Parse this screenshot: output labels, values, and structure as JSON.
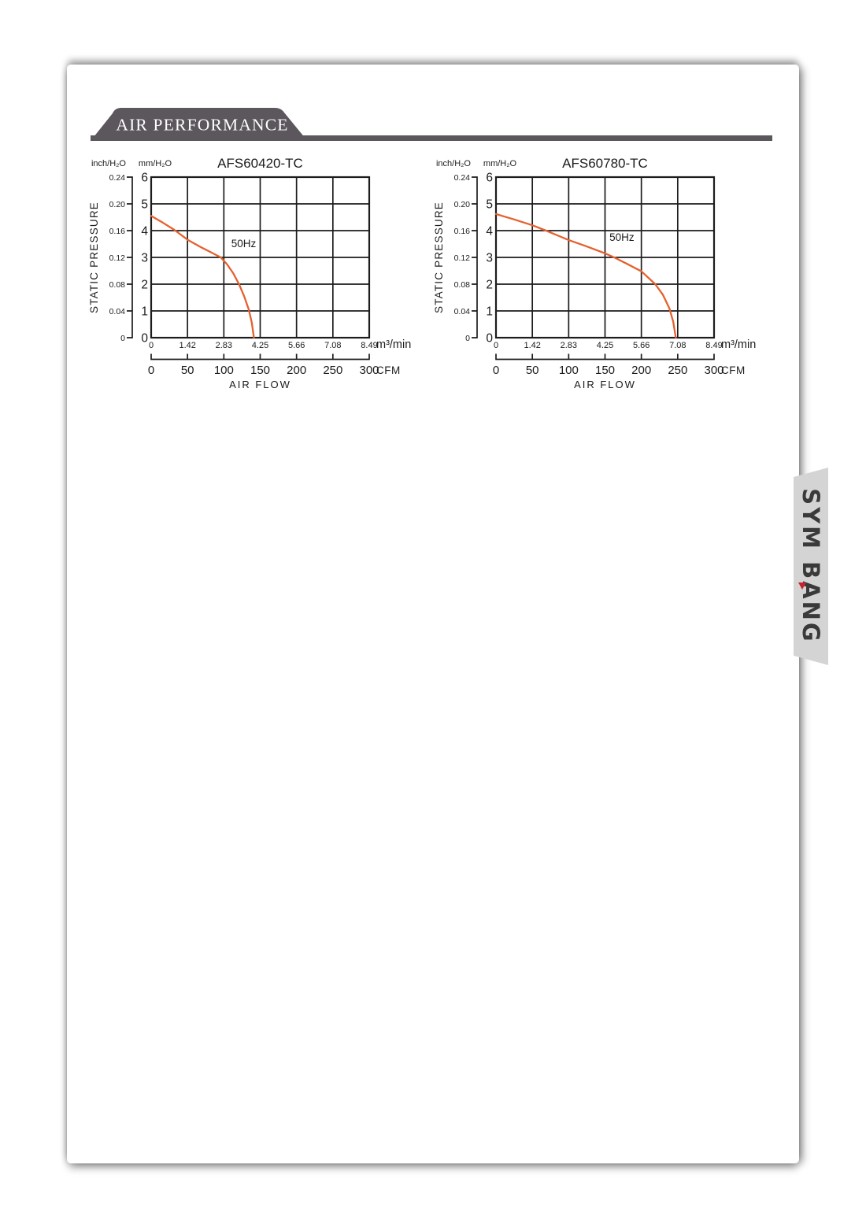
{
  "page": {
    "section_title": "AIR PERFORMANCE",
    "banner_color": "#5b575c",
    "brand": {
      "label": "SYM BANG",
      "tab_color": "#d5d4d4",
      "text_color": "#3a3a3a",
      "accent_color": "#c4232b"
    }
  },
  "colors": {
    "curve": "#e4612f",
    "grid": "#1c1c1c"
  },
  "chart_data": [
    {
      "type": "line",
      "title": "AFS60420-TC",
      "series_label": "50Hz",
      "y_axis_title": "STATIC PRESSURE",
      "x_axis_title": "AIR FLOW",
      "y_unit_left": "inch/H₂O",
      "y_unit_right": "mm/H₂O",
      "x_unit_top": "m³/min",
      "x_unit_bottom": "CFM",
      "inch_ticks": [
        "0.24",
        "0.20",
        "0.16",
        "0.12",
        "0.08",
        "0.04",
        "0"
      ],
      "mm_ticks": [
        "6",
        "5",
        "4",
        "3",
        "2",
        "1",
        "0"
      ],
      "x_ticks_m3min": [
        "0",
        "1.42",
        "2.83",
        "4.25",
        "5.66",
        "7.08",
        "8.49"
      ],
      "x_ticks_cfm": [
        "0",
        "50",
        "100",
        "150",
        "200",
        "250",
        "300"
      ],
      "x_range_m3min": [
        0,
        8.49
      ],
      "y_range_mm": [
        0,
        6
      ],
      "grid": true,
      "curve_points_m3min_mm": [
        [
          0,
          4.55
        ],
        [
          0.45,
          4.3
        ],
        [
          0.9,
          4.03
        ],
        [
          1.42,
          3.66
        ],
        [
          1.9,
          3.4
        ],
        [
          2.35,
          3.18
        ],
        [
          2.71,
          3.0
        ],
        [
          2.95,
          2.75
        ],
        [
          3.2,
          2.4
        ],
        [
          3.42,
          2.0
        ],
        [
          3.62,
          1.55
        ],
        [
          3.8,
          1.05
        ],
        [
          3.92,
          0.55
        ],
        [
          4.0,
          0
        ]
      ],
      "series_label_pos_m3min_mm": [
        3.6,
        3.38
      ]
    },
    {
      "type": "line",
      "title": "AFS60780-TC",
      "series_label": "50Hz",
      "y_axis_title": "STATIC PRESSURE",
      "x_axis_title": "AIR FLOW",
      "y_unit_left": "inch/H₂O",
      "y_unit_right": "mm/H₂O",
      "x_unit_top": "m³/min",
      "x_unit_bottom": "CFM",
      "inch_ticks": [
        "0.24",
        "0.20",
        "0.16",
        "0.12",
        "0.08",
        "0.04",
        "0"
      ],
      "mm_ticks": [
        "6",
        "5",
        "4",
        "3",
        "2",
        "1",
        "0"
      ],
      "x_ticks_m3min": [
        "0",
        "1.42",
        "2.83",
        "4.25",
        "5.66",
        "7.08",
        "8.49"
      ],
      "x_ticks_cfm": [
        "0",
        "50",
        "100",
        "150",
        "200",
        "250",
        "300"
      ],
      "x_range_m3min": [
        0,
        8.49
      ],
      "y_range_mm": [
        0,
        6
      ],
      "grid": true,
      "curve_points_m3min_mm": [
        [
          0,
          4.62
        ],
        [
          0.7,
          4.42
        ],
        [
          1.42,
          4.2
        ],
        [
          1.95,
          4.0
        ],
        [
          2.5,
          3.78
        ],
        [
          2.83,
          3.65
        ],
        [
          3.5,
          3.42
        ],
        [
          4.25,
          3.15
        ],
        [
          4.6,
          3.0
        ],
        [
          5.1,
          2.76
        ],
        [
          5.66,
          2.48
        ],
        [
          6.2,
          2.0
        ],
        [
          6.5,
          1.6
        ],
        [
          6.75,
          1.1
        ],
        [
          6.9,
          0.6
        ],
        [
          7.0,
          0
        ]
      ],
      "series_label_pos_m3min_mm": [
        4.9,
        3.62
      ]
    }
  ]
}
